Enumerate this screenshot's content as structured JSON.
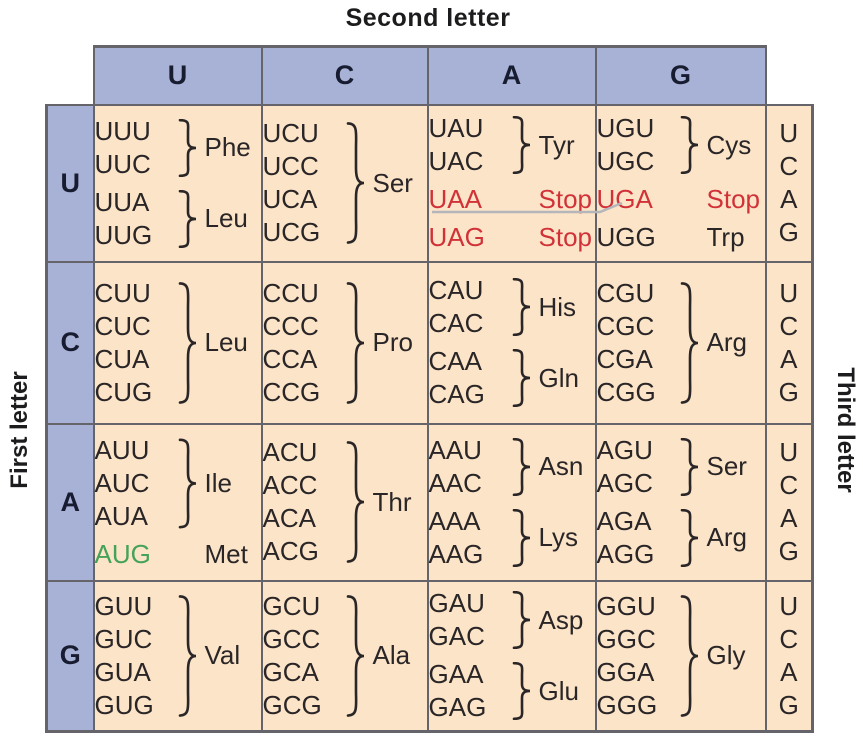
{
  "title": "Second letter",
  "axis_labels": {
    "left": "First letter",
    "right": "Third letter"
  },
  "column_headers": [
    "U",
    "C",
    "A",
    "G"
  ],
  "third_letter_column": [
    "U",
    "C",
    "A",
    "G"
  ],
  "colors": {
    "header_fill": "#a8b2d6",
    "cell_fill": "#fce4c8",
    "border": "#64646a",
    "codon_text": "#2a2627",
    "stop_red": "#d03238",
    "start_green": "#45a259"
  },
  "rows": [
    {
      "first": "U",
      "cells": [
        {
          "groups": [
            {
              "codons": [
                "UUU",
                "UUC"
              ],
              "label": "Phe",
              "brace": true
            },
            {
              "codons": [
                "UUA",
                "UUG"
              ],
              "label": "Leu",
              "brace": true
            }
          ]
        },
        {
          "groups": [
            {
              "codons": [
                "UCU",
                "UCC",
                "UCA",
                "UCG"
              ],
              "label": "Ser",
              "brace": true
            }
          ]
        },
        {
          "groups": [
            {
              "codons": [
                "UAU",
                "UAC"
              ],
              "label": "Tyr",
              "brace": true
            },
            {
              "codons": [
                "UAA"
              ],
              "label": "Stop",
              "brace": false,
              "codon_color": "stop_red",
              "label_color": "stop_red"
            },
            {
              "codons": [
                "UAG"
              ],
              "label": "Stop",
              "brace": false,
              "codon_color": "stop_red",
              "label_color": "stop_red"
            }
          ]
        },
        {
          "groups": [
            {
              "codons": [
                "UGU",
                "UGC"
              ],
              "label": "Cys",
              "brace": true
            },
            {
              "codons": [
                "UGA"
              ],
              "label": "Stop",
              "brace": false,
              "codon_color": "stop_red",
              "label_color": "stop_red"
            },
            {
              "codons": [
                "UGG"
              ],
              "label": "Trp",
              "brace": false
            }
          ]
        }
      ]
    },
    {
      "first": "C",
      "cells": [
        {
          "groups": [
            {
              "codons": [
                "CUU",
                "CUC",
                "CUA",
                "CUG"
              ],
              "label": "Leu",
              "brace": true
            }
          ]
        },
        {
          "groups": [
            {
              "codons": [
                "CCU",
                "CCC",
                "CCA",
                "CCG"
              ],
              "label": "Pro",
              "brace": true
            }
          ]
        },
        {
          "groups": [
            {
              "codons": [
                "CAU",
                "CAC"
              ],
              "label": "His",
              "brace": true
            },
            {
              "codons": [
                "CAA",
                "CAG"
              ],
              "label": "Gln",
              "brace": true
            }
          ]
        },
        {
          "groups": [
            {
              "codons": [
                "CGU",
                "CGC",
                "CGA",
                "CGG"
              ],
              "label": "Arg",
              "brace": true
            }
          ]
        }
      ]
    },
    {
      "first": "A",
      "cells": [
        {
          "groups": [
            {
              "codons": [
                "AUU",
                "AUC",
                "AUA"
              ],
              "label": "Ile",
              "brace": true
            },
            {
              "codons": [
                "AUG"
              ],
              "label": "Met",
              "brace": false,
              "codon_color": "start_green"
            }
          ]
        },
        {
          "groups": [
            {
              "codons": [
                "ACU",
                "ACC",
                "ACA",
                "ACG"
              ],
              "label": "Thr",
              "brace": true
            }
          ]
        },
        {
          "groups": [
            {
              "codons": [
                "AAU",
                "AAC"
              ],
              "label": "Asn",
              "brace": true
            },
            {
              "codons": [
                "AAA",
                "AAG"
              ],
              "label": "Lys",
              "brace": true
            }
          ]
        },
        {
          "groups": [
            {
              "codons": [
                "AGU",
                "AGC"
              ],
              "label": "Ser",
              "brace": true
            },
            {
              "codons": [
                "AGA",
                "AGG"
              ],
              "label": "Arg",
              "brace": true
            }
          ]
        }
      ]
    },
    {
      "first": "G",
      "cells": [
        {
          "groups": [
            {
              "codons": [
                "GUU",
                "GUC",
                "GUA",
                "GUG"
              ],
              "label": "Val",
              "brace": true
            }
          ]
        },
        {
          "groups": [
            {
              "codons": [
                "GCU",
                "GCC",
                "GCA",
                "GCG"
              ],
              "label": "Ala",
              "brace": true
            }
          ]
        },
        {
          "groups": [
            {
              "codons": [
                "GAU",
                "GAC"
              ],
              "label": "Asp",
              "brace": true
            },
            {
              "codons": [
                "GAA",
                "GAG"
              ],
              "label": "Glu",
              "brace": true
            }
          ]
        },
        {
          "groups": [
            {
              "codons": [
                "GGU",
                "GGC",
                "GGA",
                "GGG"
              ],
              "label": "Gly",
              "brace": true
            }
          ]
        }
      ]
    }
  ]
}
